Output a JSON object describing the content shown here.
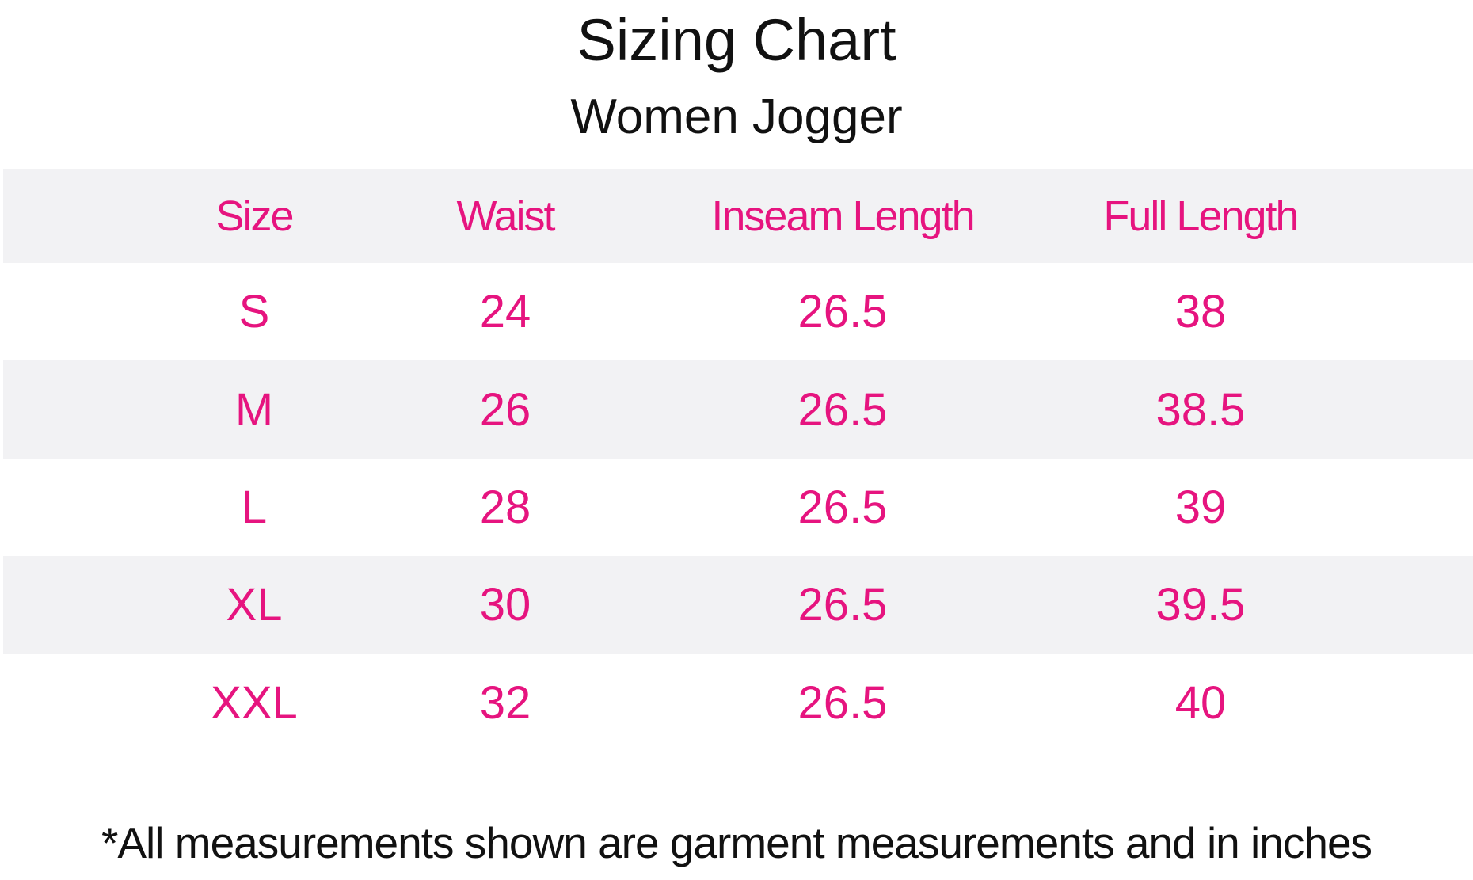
{
  "header": {
    "title": "Sizing Chart",
    "subtitle": "Women Jogger"
  },
  "table": {
    "headers": [
      "Size",
      "Waist",
      "Inseam Length",
      "Full Length"
    ],
    "rows": [
      [
        "S",
        24,
        26.5,
        38
      ],
      [
        "M",
        26,
        26.5,
        38.5
      ],
      [
        "L",
        28,
        26.5,
        39
      ],
      [
        "XL",
        30,
        26.5,
        39.5
      ],
      [
        "XXL",
        32,
        26.5,
        40
      ]
    ]
  },
  "footnote": "*All measurements shown are garment measurements and in inches"
}
